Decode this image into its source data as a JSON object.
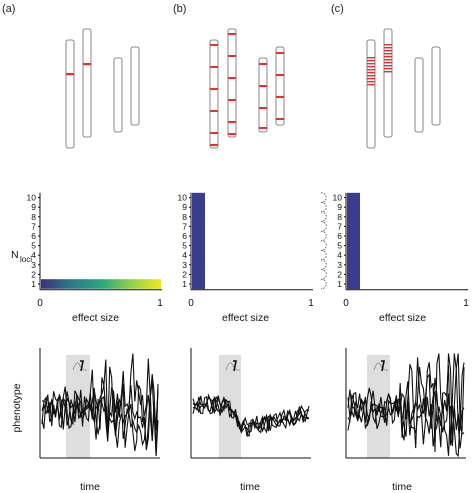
{
  "panels": [
    {
      "label": "(a)",
      "heatmap": {
        "rows": [
          1
        ],
        "gradient": [
          "#3f2d7a",
          "#2c7a8c",
          "#2aa67c",
          "#8fd14a",
          "#f2e81f"
        ]
      },
      "coils": "none",
      "traces": "divergent"
    },
    {
      "label": "(b)",
      "heatmap": {
        "rows": [
          1,
          2,
          3,
          4,
          5,
          6,
          7,
          8,
          9,
          10
        ],
        "fill": "#3a3d8c"
      },
      "coils": "dashed",
      "traces": "convergent"
    },
    {
      "label": "(c)",
      "heatmap": {
        "rows": [
          1,
          2,
          3,
          4,
          5,
          6,
          7,
          8,
          9,
          10
        ],
        "fill": "#3a3d8c"
      },
      "coils": "solid",
      "traces": "divergent"
    }
  ],
  "axes": {
    "y_label_main": "N",
    "y_label_sub": "loci",
    "y_ticks": [
      "1",
      "2",
      "3",
      "4",
      "5",
      "6",
      "7",
      "8",
      "9",
      "10"
    ],
    "x_ticks": [
      "0",
      "1"
    ],
    "x_label": "effect size",
    "trait_label": "phenotype",
    "time_label": "time"
  },
  "colors": {
    "locus": "#e0332e",
    "window": "#dedede",
    "trace": "#111111"
  }
}
